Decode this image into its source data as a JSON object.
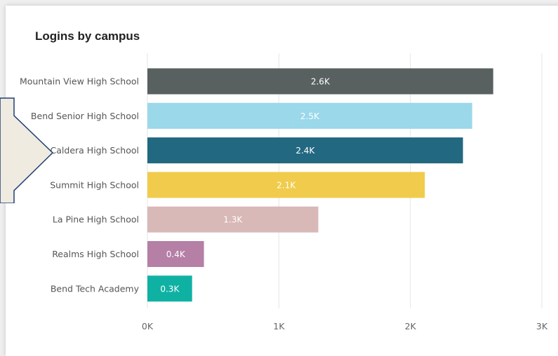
{
  "chart_data": {
    "type": "bar",
    "orientation": "horizontal",
    "title": "Logins by campus",
    "categories": [
      "Mountain View High School",
      "Bend Senior High School",
      "Caldera High School",
      "Summit High School",
      "La Pine High School",
      "Realms High School",
      "Bend Tech Academy"
    ],
    "values": [
      2630,
      2470,
      2400,
      2110,
      1300,
      430,
      340
    ],
    "data_labels": [
      "2.6K",
      "2.5K",
      "2.4K",
      "2.1K",
      "1.3K",
      "0.4K",
      "0.3K"
    ],
    "colors": [
      "#586160",
      "#9ad8ea",
      "#226880",
      "#f1cb4b",
      "#d9b8b8",
      "#b57fa6",
      "#0fb1a3"
    ],
    "xlim": [
      0,
      3000
    ],
    "x_ticks": [
      0,
      1000,
      2000,
      3000
    ],
    "x_tick_labels": [
      "0K",
      "1K",
      "2K",
      "3K"
    ],
    "grid": true,
    "xlabel": "",
    "ylabel": ""
  }
}
